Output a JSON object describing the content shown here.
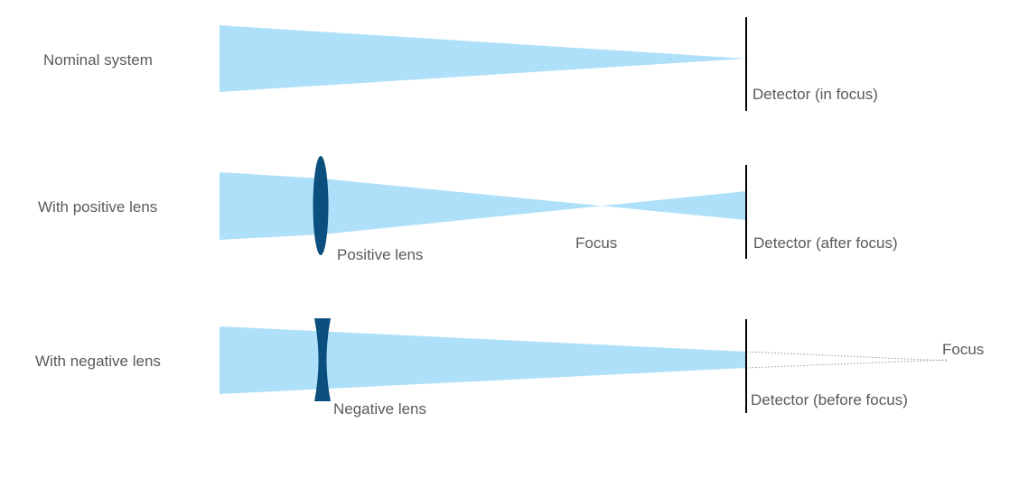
{
  "rows": {
    "nominal": {
      "row_label": "Nominal system",
      "detector_label": "Detector (in focus)"
    },
    "positive": {
      "row_label": "With positive lens",
      "lens_label": "Positive lens",
      "focus_label": "Focus",
      "detector_label": "Detector (after focus)"
    },
    "negative": {
      "row_label": "With negative lens",
      "lens_label": "Negative lens",
      "focus_label": "Focus",
      "detector_label": "Detector (before focus)"
    }
  },
  "colors": {
    "beam": "#aee0fa",
    "lens": "#0a4f7d",
    "detector": "#000000",
    "text": "#5a5a5a"
  }
}
